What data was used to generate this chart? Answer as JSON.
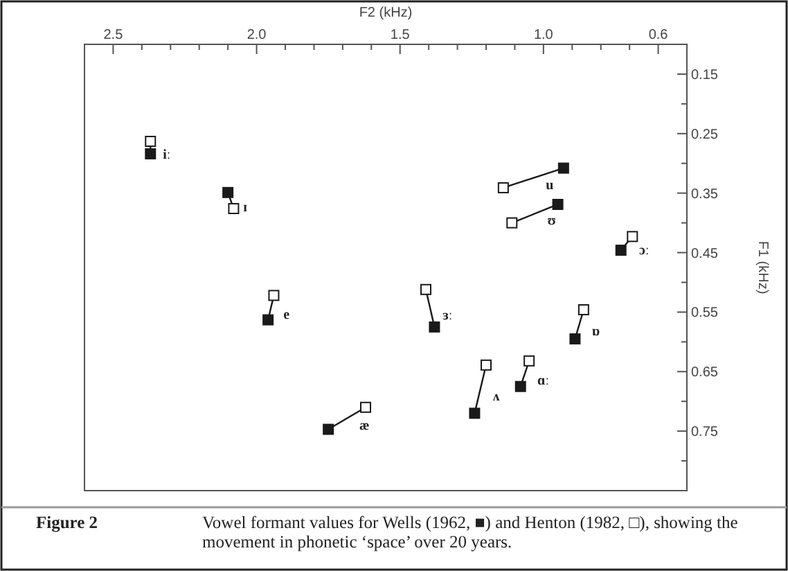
{
  "chart_data": {
    "type": "scatter",
    "xlabel": "F2 (kHz)",
    "ylabel": "F1 (kHz)",
    "xlim": [
      2.6,
      0.5
    ],
    "ylim": [
      0.85,
      0.1
    ],
    "xticks": [
      2.5,
      {
        "value": 2.4,
        "label": null
      },
      {
        "value": 2.3,
        "label": null
      },
      {
        "value": 2.2,
        "label": null
      },
      {
        "value": 2.1,
        "label": null
      },
      {
        "value": 2,
        "label": "2.0"
      },
      {
        "value": 1.9,
        "label": null
      },
      {
        "value": 1.8,
        "label": null
      },
      {
        "value": 1.7,
        "label": null
      },
      {
        "value": 1.6,
        "label": null
      },
      1.5,
      {
        "value": 1.4,
        "label": null
      },
      {
        "value": 1.3,
        "label": null
      },
      {
        "value": 1.2,
        "label": null
      },
      {
        "value": 1.1,
        "label": null
      },
      {
        "value": 1,
        "label": "1.0"
      },
      {
        "value": 0.9,
        "label": null
      },
      {
        "value": 0.8,
        "label": null
      },
      {
        "value": 0.7,
        "label": null
      },
      0.6
    ],
    "yticks": [
      0.15,
      {
        "value": 0.2,
        "label": null
      },
      0.25,
      {
        "value": 0.3,
        "label": null
      },
      0.35,
      {
        "value": 0.4,
        "label": null
      },
      0.45,
      {
        "value": 0.5,
        "label": null
      },
      0.55,
      {
        "value": 0.6,
        "label": null
      },
      0.65,
      {
        "value": 0.7,
        "label": null
      },
      0.75,
      {
        "value": 0.8,
        "label": null
      }
    ],
    "marker": "square",
    "series": [
      {
        "type": "line",
        "marker": "none",
        "name": "iː",
        "color": "#1a1a1a",
        "x": [
          2.37,
          2.37
        ],
        "values": [
          0.284,
          0.263
        ]
      },
      {
        "type": "line",
        "marker": "none",
        "name": "ɪ",
        "color": "#1a1a1a",
        "x": [
          2.1,
          2.08
        ],
        "values": [
          0.349,
          0.376
        ]
      },
      {
        "type": "line",
        "marker": "none",
        "name": "e",
        "color": "#1a1a1a",
        "x": [
          1.96,
          1.94
        ],
        "values": [
          0.563,
          0.522
        ]
      },
      {
        "type": "line",
        "marker": "none",
        "name": "æ",
        "color": "#1a1a1a",
        "x": [
          1.75,
          1.62
        ],
        "values": [
          0.747,
          0.71
        ]
      },
      {
        "type": "line",
        "marker": "none",
        "name": "u",
        "color": "#1a1a1a",
        "x": [
          0.93,
          1.14
        ],
        "values": [
          0.308,
          0.341
        ]
      },
      {
        "type": "line",
        "marker": "none",
        "name": "ʊ",
        "color": "#1a1a1a",
        "x": [
          0.95,
          1.11
        ],
        "values": [
          0.369,
          0.4
        ]
      },
      {
        "type": "line",
        "marker": "none",
        "name": "ɔː",
        "color": "#1a1a1a",
        "x": [
          0.73,
          0.69
        ],
        "values": [
          0.446,
          0.423
        ]
      },
      {
        "type": "line",
        "marker": "none",
        "name": "ɜː",
        "color": "#1a1a1a",
        "x": [
          1.38,
          1.41
        ],
        "values": [
          0.575,
          0.512
        ]
      },
      {
        "type": "line",
        "marker": "none",
        "name": "ɒ",
        "color": "#1a1a1a",
        "x": [
          0.89,
          0.86
        ],
        "values": [
          0.595,
          0.546
        ]
      },
      {
        "type": "line",
        "marker": "none",
        "name": "ʌ",
        "color": "#1a1a1a",
        "x": [
          1.24,
          1.2
        ],
        "values": [
          0.72,
          0.639
        ]
      },
      {
        "type": "line",
        "marker": "none",
        "name": "ɑː",
        "color": "#1a1a1a",
        "x": [
          1.08,
          1.05
        ],
        "values": [
          0.675,
          0.632
        ]
      },
      {
        "color": "#1a1a1a",
        "x": [
          2.37,
          2.1,
          1.96,
          1.75,
          0.93,
          0.95,
          0.73,
          1.38,
          0.89,
          1.24,
          1.08
        ],
        "values": [
          0.284,
          0.349,
          0.563,
          0.747,
          0.308,
          0.369,
          0.446,
          0.575,
          0.595,
          0.72,
          0.675
        ]
      },
      {
        "color": "#ffffff",
        "x": [
          2.37,
          2.08,
          1.94,
          1.62,
          1.14,
          1.11,
          0.69,
          1.41,
          0.86,
          1.2,
          1.05
        ],
        "values": [
          0.263,
          0.376,
          0.522,
          0.71,
          0.341,
          0.4,
          0.423,
          0.512,
          0.546,
          0.639,
          0.632
        ]
      }
    ],
    "annotations": [
      "Figure 2",
      "Vowel formant values for Wells (1962, ■) and Henton (1982, □), showing the movement in phonetic ‘space’ over 20 years."
    ]
  }
}
